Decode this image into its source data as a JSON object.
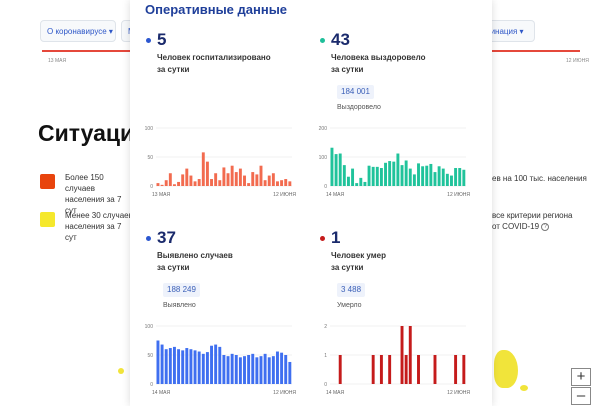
{
  "background": {
    "tabs": [
      {
        "label": "О коронавирусе",
        "has_arrow": true
      },
      {
        "label": "М"
      },
      {
        "label": "цинация",
        "has_arrow": true
      }
    ],
    "axis": {
      "start": "13 МАЯ",
      "end": "12 ИЮНЯ"
    },
    "heading": "Ситуаци",
    "legend": [
      {
        "text": "Более 150 случаев населения за 7 сут",
        "color": "#e8440d"
      },
      {
        "text": "Менее 30 случаев населения за 7 сут",
        "color": "#f5e82c"
      }
    ],
    "right_text": {
      "line1": "ев на 100 тыс. населения",
      "line2": "все критерии региона",
      "line3": "от COVID-19"
    },
    "map_controls": {
      "zoom_in": "+",
      "zoom_out": "–"
    }
  },
  "panel": {
    "title": "Оперативные данные",
    "stats": [
      {
        "value": "5",
        "description_line1": "Человек госпитализировано",
        "description_line2": "за сутки",
        "dot_color": "#2c57d0",
        "badge": "",
        "sub": ""
      },
      {
        "value": "43",
        "description_line1": "Человека выздоровело",
        "description_line2": "за сутки",
        "dot_color": "#1fbf9a",
        "badge": "184 001",
        "sub": "Выздоровело"
      },
      {
        "value": "37",
        "description_line1": "Выявлено случаев",
        "description_line2": "за сутки",
        "dot_color": "#2c57d0",
        "badge": "188 249",
        "sub": "Выявлено"
      },
      {
        "value": "1",
        "description_line1": "Человек умер",
        "description_line2": "за сутки",
        "dot_color": "#c51b1b",
        "badge": "3 488",
        "sub": "Умерло"
      }
    ]
  },
  "chart_data": [
    {
      "type": "bar",
      "color": "#f26b4f",
      "x_start_label": "13 МАЯ",
      "x_end_label": "12 ИЮНЯ",
      "yticks": [
        "100",
        "50",
        "0"
      ],
      "ylim": [
        0,
        100
      ],
      "values": [
        5,
        2,
        10,
        22,
        3,
        7,
        20,
        30,
        18,
        8,
        12,
        58,
        42,
        12,
        22,
        10,
        32,
        22,
        35,
        24,
        30,
        18,
        5,
        24,
        20,
        35,
        10,
        18,
        22,
        8,
        10,
        12,
        8
      ]
    },
    {
      "type": "bar",
      "color": "#20c39b",
      "x_start_label": "14 МАЯ",
      "x_end_label": "12 ИЮНЯ",
      "yticks": [
        "200",
        "100",
        "0"
      ],
      "ylim": [
        0,
        200
      ],
      "values": [
        132,
        110,
        112,
        72,
        32,
        60,
        10,
        28,
        14,
        70,
        66,
        66,
        62,
        80,
        86,
        84,
        112,
        72,
        88,
        60,
        40,
        78,
        68,
        70,
        76,
        48,
        68,
        60,
        42,
        36,
        62,
        62,
        56
      ]
    },
    {
      "type": "bar",
      "color": "#3f6ff0",
      "x_start_label": "14 МАЯ",
      "x_end_label": "12 ИЮНЯ",
      "yticks": [
        "100",
        "50",
        "0"
      ],
      "ylim": [
        0,
        100
      ],
      "values": [
        75,
        68,
        60,
        62,
        64,
        60,
        58,
        62,
        60,
        58,
        56,
        52,
        55,
        66,
        68,
        64,
        50,
        48,
        52,
        50,
        46,
        48,
        50,
        52,
        46,
        48,
        52,
        46,
        48,
        56,
        54,
        50,
        38
      ]
    },
    {
      "type": "bar",
      "color": "#c51b1b",
      "x_start_label": "14 МАЯ",
      "x_end_label": "12 ИЮНЯ",
      "yticks": [
        "2",
        "1",
        "0"
      ],
      "ylim": [
        0,
        2
      ],
      "values": [
        0,
        0,
        1,
        0,
        0,
        0,
        0,
        0,
        0,
        0,
        1,
        0,
        1,
        0,
        1,
        0,
        0,
        2,
        1,
        2,
        0,
        1,
        0,
        0,
        0,
        1,
        0,
        0,
        0,
        0,
        1,
        0,
        1
      ]
    }
  ]
}
